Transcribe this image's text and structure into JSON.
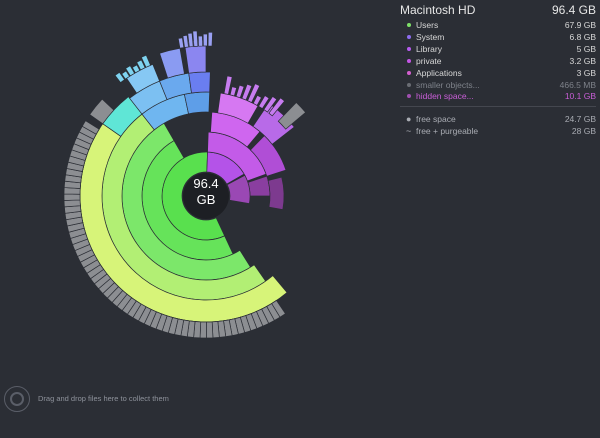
{
  "header": {
    "title": "Macintosh HD",
    "total": "96.4 GB"
  },
  "center": {
    "size": "96.4",
    "unit": "GB"
  },
  "legend": [
    {
      "label": "Users",
      "value": "67.9 GB",
      "color": "#7ee068",
      "label_color": "#d8d8d8"
    },
    {
      "label": "System",
      "value": "6.8 GB",
      "color": "#8d6cf0",
      "label_color": "#d8d8d8"
    },
    {
      "label": "Library",
      "value": "5   GB",
      "color": "#b65cf0",
      "label_color": "#d8d8d8"
    },
    {
      "label": "private",
      "value": "3.2 GB",
      "color": "#c455e6",
      "label_color": "#d8d8d8"
    },
    {
      "label": "Applications",
      "value": "3   GB",
      "color": "#d45fcf",
      "label_color": "#d8d8d8"
    },
    {
      "label": "smaller objects...",
      "value": "466.5 MB",
      "color": "#6a6d74",
      "label_color": "#7e828a"
    },
    {
      "label": "hidden space...",
      "value": "10.1 GB",
      "color": "#a04fb0",
      "label_color": "#c95ed8"
    }
  ],
  "space": [
    {
      "symbol": "●",
      "label": "free space",
      "value": "24.7 GB"
    },
    {
      "symbol": "~",
      "label": "free + purgeable",
      "value": "28   GB"
    }
  ],
  "footer": {
    "drop_text": "Drag and drop files here to collect them"
  }
}
